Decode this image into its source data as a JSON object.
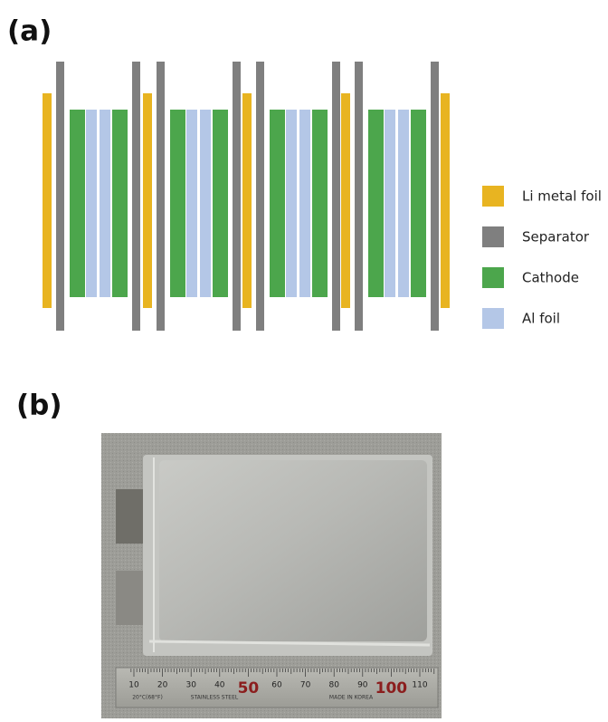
{
  "panels": [
    {
      "label": "(a)",
      "legend": [
        "Li metal foil",
        "Separator",
        "Cathode",
        "Al foil"
      ]
    },
    {
      "label": "(b)",
      "ruler": {
        "numbers": [
          "10",
          "20",
          "30",
          "40",
          "50",
          "60",
          "70",
          "80",
          "90",
          "100",
          "110"
        ],
        "texts": [
          "20°C(68°F)",
          "STAINLESS STEEL",
          "MADE IN KOREA"
        ]
      }
    }
  ]
}
